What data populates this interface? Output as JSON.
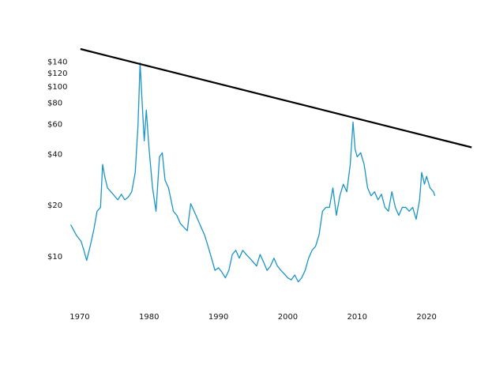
{
  "chart_data": {
    "type": "line",
    "log_y": true,
    "xlim": [
      1967,
      2027
    ],
    "xticks": [
      1970,
      1980,
      1990,
      2000,
      2010,
      2020
    ],
    "ylim": [
      6.5,
      180
    ],
    "yticks": [
      {
        "value": 10,
        "label": "$10"
      },
      {
        "value": 20,
        "label": "$20"
      },
      {
        "value": 40,
        "label": "$40"
      },
      {
        "value": 60,
        "label": "$60"
      },
      {
        "value": 80,
        "label": "$80"
      },
      {
        "value": 100,
        "label": "$100"
      },
      {
        "value": 120,
        "label": "$120"
      },
      {
        "value": 140,
        "label": "$140"
      }
    ],
    "series": [
      {
        "color": "#1a95c8",
        "width": 1.3,
        "x": [
          1968.7,
          1969.5,
          1970.2,
          1970.6,
          1971,
          1971.5,
          1972,
          1972.5,
          1973,
          1973.3,
          1973.6,
          1974,
          1974.5,
          1975,
          1975.5,
          1976,
          1976.5,
          1977,
          1977.5,
          1978,
          1978.4,
          1978.7,
          1979,
          1979.3,
          1979.6,
          1980,
          1980.5,
          1981,
          1981.5,
          1981.9,
          1982.3,
          1982.8,
          1983.5,
          1984,
          1984.5,
          1985,
          1985.5,
          1986,
          1986.5,
          1987,
          1987.5,
          1988,
          1988.5,
          1989,
          1989.5,
          1990,
          1990.5,
          1991,
          1991.5,
          1992,
          1992.5,
          1993,
          1993.5,
          1994,
          1994.5,
          1995,
          1995.5,
          1996,
          1996.5,
          1997,
          1997.5,
          1998,
          1998.5,
          1999,
          1999.5,
          2000,
          2000.5,
          2001,
          2001.5,
          2002,
          2002.5,
          2003,
          2003.5,
          2004,
          2004.5,
          2005,
          2005.5,
          2006,
          2006.5,
          2007,
          2007.5,
          2008,
          2008.5,
          2009,
          2009.4,
          2009.7,
          2010,
          2010.5,
          2011,
          2011.5,
          2012,
          2012.5,
          2013,
          2013.5,
          2014,
          2014.5,
          2015,
          2015.5,
          2016,
          2016.5,
          2017,
          2017.5,
          2018,
          2018.5,
          2019,
          2019.3,
          2019.7,
          2020,
          2020.5,
          2021,
          2021.2
        ],
        "values": [
          15.4,
          13.4,
          12.3,
          10.9,
          9.5,
          11.5,
          14.2,
          18.5,
          19.5,
          34.9,
          29.7,
          25.4,
          24.1,
          22.8,
          21.6,
          23.3,
          21.6,
          22.4,
          24.1,
          31.3,
          59,
          138,
          81,
          48,
          73,
          43,
          25.4,
          18.5,
          38.7,
          40.9,
          28.2,
          25.4,
          18.5,
          17.5,
          15.7,
          14.9,
          14.2,
          20.5,
          18.5,
          16.6,
          14.9,
          13.4,
          11.5,
          9.8,
          8.3,
          8.6,
          8.1,
          7.5,
          8.3,
          10.3,
          10.9,
          9.8,
          10.9,
          10.3,
          9.8,
          9.3,
          8.8,
          10.3,
          9.3,
          8.3,
          8.8,
          9.8,
          8.8,
          8.3,
          7.9,
          7.5,
          7.3,
          7.8,
          7.1,
          7.5,
          8.3,
          9.8,
          10.9,
          11.5,
          13.4,
          18.5,
          19.5,
          19.5,
          25.4,
          17.5,
          22.8,
          26.7,
          24.1,
          34.9,
          62,
          43,
          38.7,
          40.9,
          34.9,
          25.4,
          22.8,
          24.1,
          21.6,
          23.3,
          19.5,
          18.5,
          24.1,
          19.5,
          17.5,
          19.5,
          19.5,
          18.5,
          19.5,
          16.6,
          21.6,
          31.3,
          26.7,
          29.7,
          25.4,
          24.1,
          22.8
        ]
      },
      {
        "color": "#000000",
        "width": 2.2,
        "x": [
          1970.1,
          2026.5
        ],
        "values": [
          167,
          44
        ]
      }
    ]
  }
}
